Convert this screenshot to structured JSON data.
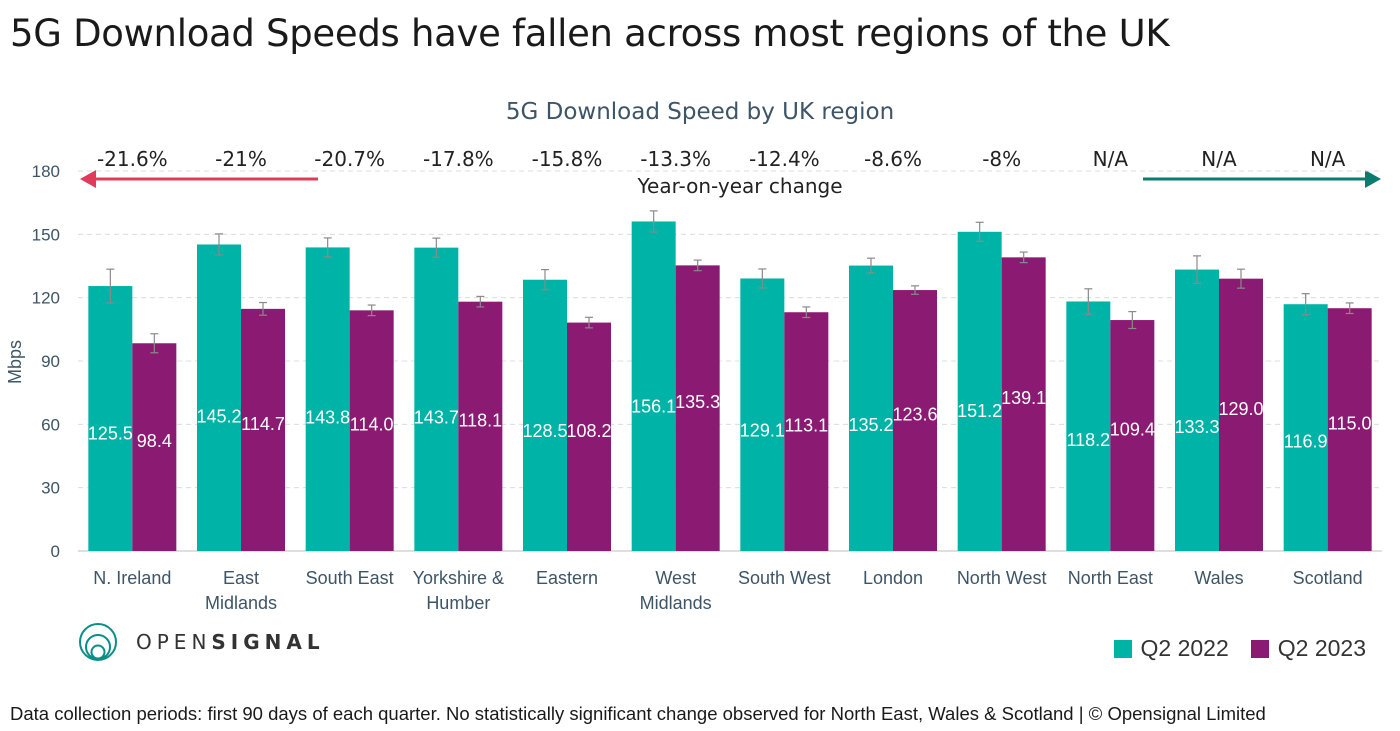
{
  "headline": "5G Download Speeds have fallen across most regions of the UK",
  "colors": {
    "series_2022": "#00b3a7",
    "series_2023": "#8b1a72",
    "down_arrow": "#e03b5a",
    "up_arrow": "#0a7d70"
  },
  "chart_data": {
    "type": "bar",
    "title": "5G Download Speed by UK region",
    "ylabel": "Mbps",
    "xlabel": "",
    "ylim": [
      0,
      180
    ],
    "yticks": [
      0,
      30,
      60,
      90,
      120,
      150,
      180
    ],
    "grid": true,
    "categories": [
      "N. Ireland",
      "East Midlands",
      "South East",
      "Yorkshire & Humber",
      "Eastern",
      "West Midlands",
      "South West",
      "London",
      "North West",
      "North East",
      "Wales",
      "Scotland"
    ],
    "category_lines": [
      [
        "N. Ireland"
      ],
      [
        "East",
        "Midlands"
      ],
      [
        "South East"
      ],
      [
        "Yorkshire &",
        "Humber"
      ],
      [
        "Eastern"
      ],
      [
        "West",
        "Midlands"
      ],
      [
        "South West"
      ],
      [
        "London"
      ],
      [
        "North West"
      ],
      [
        "North East"
      ],
      [
        "Wales"
      ],
      [
        "Scotland"
      ]
    ],
    "series": [
      {
        "name": "Q2 2022",
        "values": [
          125.5,
          145.2,
          143.8,
          143.7,
          128.5,
          156.1,
          129.1,
          135.2,
          151.2,
          118.2,
          133.3,
          116.9
        ],
        "labels": [
          "125.5",
          "145.2",
          "143.8",
          "143.7",
          "128.5",
          "156.1",
          "129.1",
          "135.2",
          "151.2",
          "118.2",
          "133.3",
          "116.9"
        ],
        "error": [
          8,
          5,
          4.5,
          4.5,
          4.8,
          5,
          4.5,
          3.5,
          4.5,
          6,
          6.5,
          5
        ]
      },
      {
        "name": "Q2 2023",
        "values": [
          98.4,
          114.7,
          114.0,
          118.1,
          108.2,
          135.3,
          113.1,
          123.6,
          139.1,
          109.4,
          129.0,
          115.0
        ],
        "labels": [
          "98.4",
          "114.7",
          "114.0",
          "118.1",
          "108.2",
          "135.3",
          "113.1",
          "123.6",
          "139.1",
          "109.4",
          "129.0",
          "115.0"
        ],
        "error": [
          4.5,
          3,
          2.5,
          2.5,
          2.5,
          2.5,
          2.5,
          2,
          2.5,
          4,
          4.5,
          2.5
        ]
      }
    ],
    "yoy_change_label": "Year-on-year change",
    "yoy_change": [
      "-21.6%",
      "-21%",
      "-20.7%",
      "-17.8%",
      "-15.8%",
      "-13.3%",
      "-12.4%",
      "-8.6%",
      "-8%",
      "N/A",
      "N/A",
      "N/A"
    ]
  },
  "logo": {
    "part1": "OPEN",
    "part2": "SIGNAL"
  },
  "footnote": "Data collection periods: first 90 days of each quarter. No statistically significant change observed for North East, Wales & Scotland | © Opensignal Limited"
}
